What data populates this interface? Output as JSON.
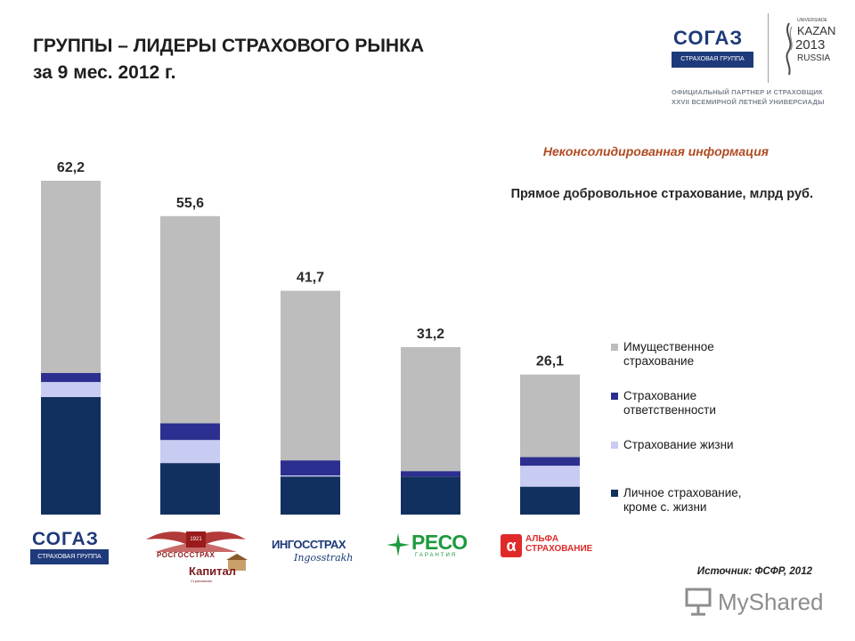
{
  "header": {
    "title_line1": "ГРУППЫ – ЛИДЕРЫ СТРАХОВОГО РЫНКА",
    "title_line2": "за 9 мес. 2012 г.",
    "sogaz_word": "СОГАЗ",
    "sogaz_sub": "СТРАХОВАЯ ГРУППА",
    "universiade_small": "UNIVERSIADE",
    "universiade_city": "KAZAN",
    "universiade_year": "2013",
    "universiade_country": "RUSSIA",
    "partner_line1": "ОФИЦИАЛЬНЫЙ ПАРТНЕР И СТРАХОВЩИК",
    "partner_line2": "XXVII ВСЕМИРНОЙ ЛЕТНЕЙ УНИВЕРСИАДЫ"
  },
  "subtitle_note": "Неконсолидированная информация",
  "chart_data": {
    "type": "bar",
    "stacked": true,
    "title": "Прямое добровольное страхование, млрд руб.",
    "categories": [
      "СОГАЗ",
      "Росгосстрах / Капитал",
      "Ингосстрах",
      "РЕСО-Гарантия",
      "АльфаСтрахование"
    ],
    "totals": [
      62.2,
      55.6,
      41.7,
      31.2,
      26.1
    ],
    "total_labels": [
      "62,2",
      "55,6",
      "41,7",
      "31,2",
      "26,1"
    ],
    "series": [
      {
        "name": "Личное страхование, кроме с. жизни",
        "color": "#12305f",
        "values": [
          21.9,
          9.6,
          7.1,
          7.1,
          5.2
        ]
      },
      {
        "name": "Страхование жизни",
        "color": "#c8ccf2",
        "values": [
          2.8,
          4.3,
          0.2,
          0.0,
          3.9
        ]
      },
      {
        "name": "Страхование ответственности",
        "color": "#2c2f8f",
        "values": [
          1.7,
          3.1,
          2.8,
          1.0,
          1.6
        ]
      },
      {
        "name": "Имущественное страхование",
        "color": "#bdbdbd",
        "values": [
          35.8,
          38.6,
          31.6,
          23.1,
          15.4
        ]
      }
    ],
    "ylim": [
      0,
      62.2
    ],
    "grid": false,
    "legend_placement": "right"
  },
  "legend_order": [
    3,
    2,
    1,
    0
  ],
  "legend_lines": [
    [
      "Имущественное",
      "страхование"
    ],
    [
      "Страхование",
      "ответственности"
    ],
    [
      "Страхование жизни"
    ],
    [
      "Личное страхование,",
      "кроме с. жизни"
    ]
  ],
  "logos": {
    "sogaz_word": "СОГАЗ",
    "sogaz_sub": "СТРАХОВАЯ ГРУППА",
    "rgs_text": "РОСГОССТРАХ",
    "rgs_year": "1921",
    "kapital_text": "Капитал",
    "kapital_sub": "Страхование",
    "ingos_line1": "ИНГОССТРАХ",
    "ingos_line2": "Ingosstrakh",
    "reso_text": "РЕСО",
    "reso_sub": "ГАРАНТИЯ",
    "alfa_line1": "АЛЬФА",
    "alfa_line2": "СТРАХОВАНИЕ"
  },
  "source": "Источник: ФСФР, 2012",
  "watermark": "MyShared",
  "colors": {
    "accent_orange": "#b04a22",
    "brand_blue": "#1f3a7a"
  }
}
